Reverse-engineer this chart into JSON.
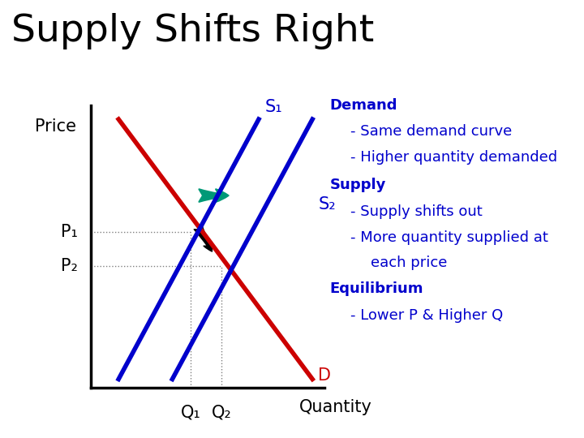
{
  "title": "Supply Shifts Right",
  "title_fontsize": 34,
  "title_color": "#000000",
  "bg_color": "#ffffff",
  "ax_label_color": "#000000",
  "xlabel": "Quantity",
  "ylabel": "Price",
  "axis_label_fontsize": 15,
  "xlim": [
    0,
    10
  ],
  "ylim": [
    0,
    10
  ],
  "demand_color": "#cc0000",
  "supply1_color": "#0000cc",
  "supply2_color": "#0000cc",
  "dashed_color": "#808080",
  "annotation_color": "#0000cc",
  "annotation_fontsize": 13,
  "demand_line": {
    "x": [
      1.2,
      9.5
    ],
    "y": [
      9.5,
      0.3
    ]
  },
  "supply1_line": {
    "x": [
      1.2,
      7.2
    ],
    "y": [
      0.3,
      9.5
    ]
  },
  "supply2_line": {
    "x": [
      3.5,
      9.5
    ],
    "y": [
      0.3,
      9.5
    ]
  },
  "eq1_x": 4.3,
  "eq1_y": 5.5,
  "eq2_x": 5.6,
  "eq2_y": 4.3,
  "P1_label": "P₁",
  "P2_label": "P₂",
  "Q1_label": "Q₁",
  "Q2_label": "Q₂",
  "S1_label": "S₁",
  "S2_label": "S₂",
  "D_label": "D",
  "arrow_color": "#009977",
  "line_width": 4,
  "label_fontsize": 15
}
